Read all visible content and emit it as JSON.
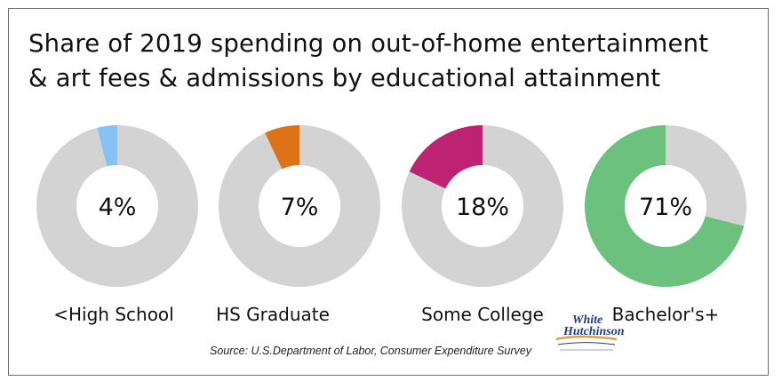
{
  "title_lines": [
    "Share of 2019 spending on out-of-home entertainment",
    "& art fees & admissions by educational attainment"
  ],
  "source": "Source: U.S.Department of Labor, Consumer Expenditure Survey",
  "logo": {
    "line1": "White",
    "line2": "Hutchinson"
  },
  "colors": {
    "remainder": "#d3d3d3"
  },
  "chart_data": [
    {
      "type": "pie",
      "category": "<High School",
      "value": 4,
      "label": "4%",
      "color": "#86c2f5"
    },
    {
      "type": "pie",
      "category": "HS Graduate",
      "value": 7,
      "label": "7%",
      "color": "#dc7417"
    },
    {
      "type": "pie",
      "category": "Some College",
      "value": 18,
      "label": "18%",
      "color": "#be2373"
    },
    {
      "type": "pie",
      "category": "Bachelor's+",
      "value": 71,
      "label": "71%",
      "color": "#6cc17e"
    }
  ]
}
